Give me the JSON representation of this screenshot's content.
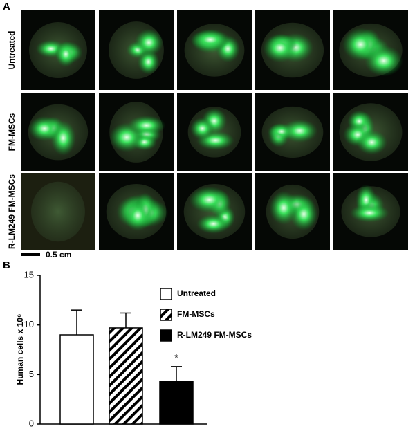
{
  "panel_a": {
    "label": "A",
    "rows": [
      "Untreated",
      "FM-MSCs",
      "R-LM249 FM-MSCs"
    ],
    "scale_bar": "0.5 cm"
  },
  "chart_data": {
    "type": "bar",
    "panel_label": "B",
    "y_label": "Human cells x 10⁶",
    "series": [
      {
        "name": "Untreated",
        "color": "#ffffff",
        "values": [
          9
        ],
        "errors": [
          2.5
        ]
      },
      {
        "name": "FM-MSCs",
        "color": "#ffffff",
        "pattern": "hatch",
        "values": [
          9.7
        ],
        "errors": [
          1.5
        ]
      },
      {
        "name": "R-LM249 FM-MSCs",
        "color": "#000000",
        "values": [
          4.3
        ],
        "errors": [
          1.5
        ],
        "annotation": "*"
      }
    ],
    "ylim": [
      0,
      15
    ],
    "yticks": [
      0,
      5,
      10,
      15
    ]
  }
}
